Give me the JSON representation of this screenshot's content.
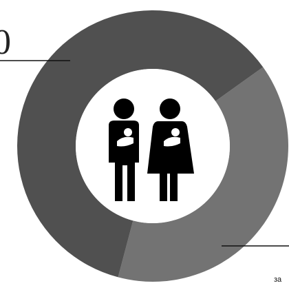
{
  "chart_data": {
    "type": "pie",
    "donut": true,
    "categories": [
      "",
      ""
    ],
    "values": [
      61,
      39
    ],
    "colors": [
      "#505050",
      "#737373"
    ],
    "labels": {
      "left_value": "0",
      "right_value_top": "",
      "right_value_bottom": "",
      "right_caption": "за"
    },
    "legend": "none",
    "center_icon": "family-parents-with-babies-icon"
  }
}
